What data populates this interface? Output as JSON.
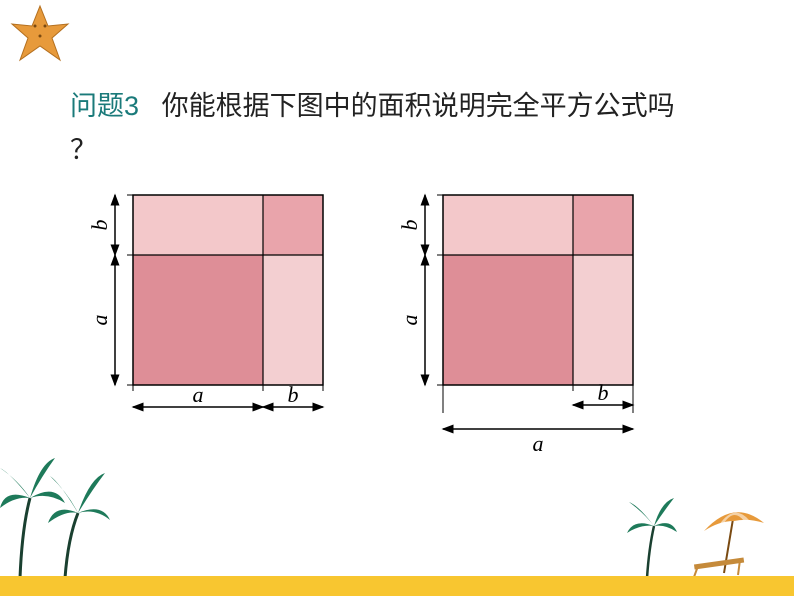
{
  "title": {
    "label": "问题3",
    "text": "你能根据下图中的面积说明完全平方公式吗",
    "qmark": "？"
  },
  "diagram1": {
    "type": "infographic",
    "square_size": 190,
    "a": 130,
    "b": 60,
    "label_a": "a",
    "label_b": "b",
    "colors": {
      "a2": "#de8e97",
      "b2": "#e9a4ab",
      "ab_top": "#f3c8ca",
      "ab_right": "#f3cfd1",
      "line": "#000000",
      "arrow": "#000000"
    },
    "label_fontsize": 22,
    "label_fontstyle": "italic"
  },
  "diagram2": {
    "type": "infographic",
    "square_size": 190,
    "inner_a": 130,
    "inner_b": 60,
    "label_a": "a",
    "label_b": "b",
    "colors": {
      "big": "#f7d9db",
      "inner_a2": "#de8e97",
      "inner_b2": "#e9a4ab",
      "strip_top": "#f3c8ca",
      "strip_right": "#f3cfd1",
      "line": "#000000",
      "arrow": "#000000"
    },
    "label_fontsize": 22,
    "label_fontstyle": "italic"
  },
  "decor": {
    "band_color": "#f8c630",
    "starfish_color": "#e79a3b",
    "palm_trunk": "#8a5a2a",
    "palm_leaf": "#1e7a5a",
    "umbrella_top": "#e79a3b",
    "umbrella_stripe": "#ffffff",
    "chair": "#c58a3a"
  }
}
